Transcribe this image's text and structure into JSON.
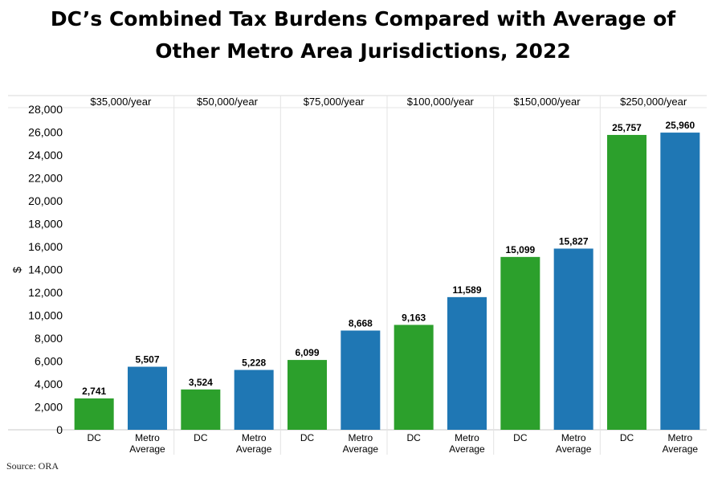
{
  "title_lines": [
    "DC’s Combined Tax Burdens Compared with Average of",
    "Other Metro Area Jurisdictions, 2022"
  ],
  "source": "Source: ORA",
  "chart_data": {
    "type": "bar",
    "ylabel": "$",
    "ylim": [
      0,
      28000
    ],
    "yticks": [
      0,
      2000,
      4000,
      6000,
      8000,
      10000,
      12000,
      14000,
      16000,
      18000,
      20000,
      22000,
      24000,
      26000,
      28000
    ],
    "grid": false,
    "groups": [
      {
        "label": "$35,000/year",
        "bars": [
          {
            "label": "DC",
            "value": 2741,
            "value_label": "2,741",
            "color": "#2ca02c"
          },
          {
            "label": "Metro Average",
            "value": 5507,
            "value_label": "5,507",
            "color": "#1f77b4"
          }
        ]
      },
      {
        "label": "$50,000/year",
        "bars": [
          {
            "label": "DC",
            "value": 3524,
            "value_label": "3,524",
            "color": "#2ca02c"
          },
          {
            "label": "Metro Average",
            "value": 5228,
            "value_label": "5,228",
            "color": "#1f77b4"
          }
        ]
      },
      {
        "label": "$75,000/year",
        "bars": [
          {
            "label": "DC",
            "value": 6099,
            "value_label": "6,099",
            "color": "#2ca02c"
          },
          {
            "label": "Metro Average",
            "value": 8668,
            "value_label": "8,668",
            "color": "#1f77b4"
          }
        ]
      },
      {
        "label": "$100,000/year",
        "bars": [
          {
            "label": "DC",
            "value": 9163,
            "value_label": "9,163",
            "color": "#2ca02c"
          },
          {
            "label": "Metro Average",
            "value": 11589,
            "value_label": "11,589",
            "color": "#1f77b4"
          }
        ]
      },
      {
        "label": "$150,000/year",
        "bars": [
          {
            "label": "DC",
            "value": 15099,
            "value_label": "15,099",
            "color": "#2ca02c"
          },
          {
            "label": "Metro Average",
            "value": 15827,
            "value_label": "15,827",
            "color": "#1f77b4"
          }
        ]
      },
      {
        "label": "$250,000/year",
        "bars": [
          {
            "label": "DC",
            "value": 25757,
            "value_label": "25,757",
            "color": "#2ca02c"
          },
          {
            "label": "Metro Average",
            "value": 25960,
            "value_label": "25,960",
            "color": "#1f77b4"
          }
        ]
      }
    ]
  }
}
